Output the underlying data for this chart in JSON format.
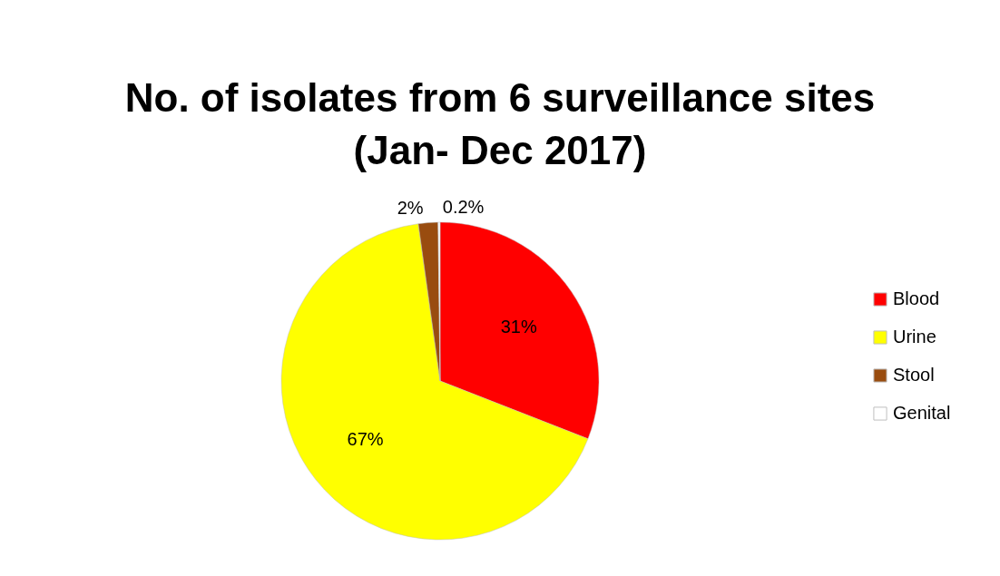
{
  "chart_data": {
    "type": "pie",
    "title": "No. of  isolates from 6 surveillance sites\n(Jan- Dec 2017)",
    "categories": [
      "Blood",
      "Urine",
      "Stool",
      "Genital"
    ],
    "values": [
      31,
      67,
      2,
      0.2
    ],
    "value_labels": [
      "31%",
      "67%",
      "2%",
      "0.2%"
    ],
    "colors": [
      "#ff0000",
      "#ffff00",
      "#994c0f",
      "#ffffff"
    ],
    "legend": "right"
  }
}
